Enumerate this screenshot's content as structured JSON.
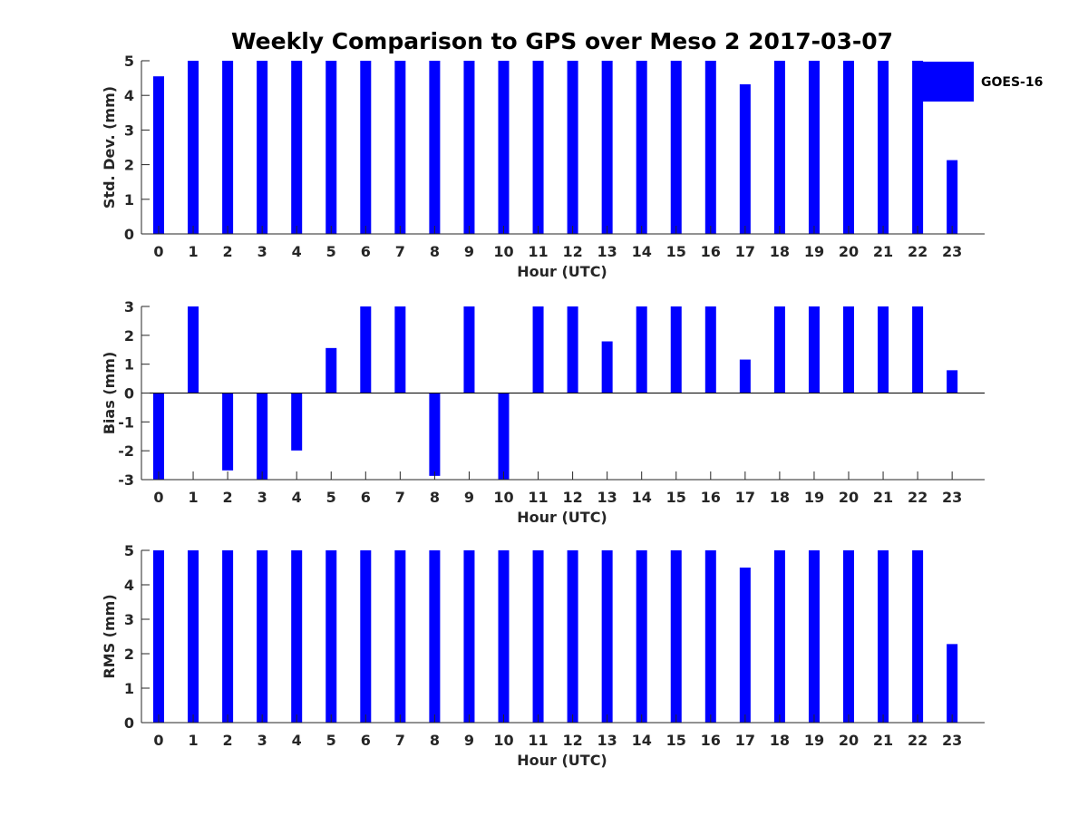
{
  "title": "Weekly Comparison to GPS over Meso 2 2017-03-07",
  "legend": {
    "label": "GOES-16",
    "color": "#0000ff",
    "placement": "top-right"
  },
  "chart_data": [
    {
      "type": "bar",
      "name": "std-dev",
      "xlabel": "Hour (UTC)",
      "ylabel": "Std. Dev. (mm)",
      "ylim": [
        0,
        5
      ],
      "yticks": [
        "0",
        "1",
        "2",
        "3",
        "4",
        "5"
      ],
      "categories": [
        "0",
        "1",
        "2",
        "3",
        "4",
        "5",
        "6",
        "7",
        "8",
        "9",
        "10",
        "11",
        "12",
        "13",
        "14",
        "15",
        "16",
        "17",
        "18",
        "19",
        "20",
        "21",
        "22",
        "23"
      ],
      "series": [
        {
          "name": "GOES-16",
          "color": "#0000ff",
          "values": [
            4.55,
            5,
            5,
            5,
            5,
            5,
            5,
            5,
            5,
            5,
            5,
            5,
            5,
            5,
            5,
            5,
            5,
            4.32,
            5,
            5,
            5,
            5,
            5,
            2.13
          ]
        }
      ]
    },
    {
      "type": "bar",
      "name": "bias",
      "xlabel": "Hour (UTC)",
      "ylabel": "Bias (mm)",
      "ylim": [
        -3,
        3
      ],
      "yticks": [
        "-3",
        "-2",
        "-1",
        "0",
        "1",
        "2",
        "3"
      ],
      "categories": [
        "0",
        "1",
        "2",
        "3",
        "4",
        "5",
        "6",
        "7",
        "8",
        "9",
        "10",
        "11",
        "12",
        "13",
        "14",
        "15",
        "16",
        "17",
        "18",
        "19",
        "20",
        "21",
        "22",
        "23"
      ],
      "series": [
        {
          "name": "GOES-16",
          "color": "#0000ff",
          "values": [
            -3,
            3,
            -2.68,
            -3,
            -1.99,
            1.56,
            3,
            3,
            -2.87,
            3,
            -3,
            3,
            3,
            1.79,
            3,
            3,
            3,
            1.16,
            3,
            3,
            3,
            3,
            3,
            0.79
          ]
        }
      ]
    },
    {
      "type": "bar",
      "name": "rms",
      "xlabel": "Hour (UTC)",
      "ylabel": "RMS (mm)",
      "ylim": [
        0,
        5
      ],
      "yticks": [
        "0",
        "1",
        "2",
        "3",
        "4",
        "5"
      ],
      "categories": [
        "0",
        "1",
        "2",
        "3",
        "4",
        "5",
        "6",
        "7",
        "8",
        "9",
        "10",
        "11",
        "12",
        "13",
        "14",
        "15",
        "16",
        "17",
        "18",
        "19",
        "20",
        "21",
        "22",
        "23"
      ],
      "series": [
        {
          "name": "GOES-16",
          "color": "#0000ff",
          "values": [
            5,
            5,
            5,
            5,
            5,
            5,
            5,
            5,
            5,
            5,
            5,
            5,
            5,
            5,
            5,
            5,
            5,
            4.5,
            5,
            5,
            5,
            5,
            5,
            2.28
          ]
        }
      ]
    }
  ]
}
